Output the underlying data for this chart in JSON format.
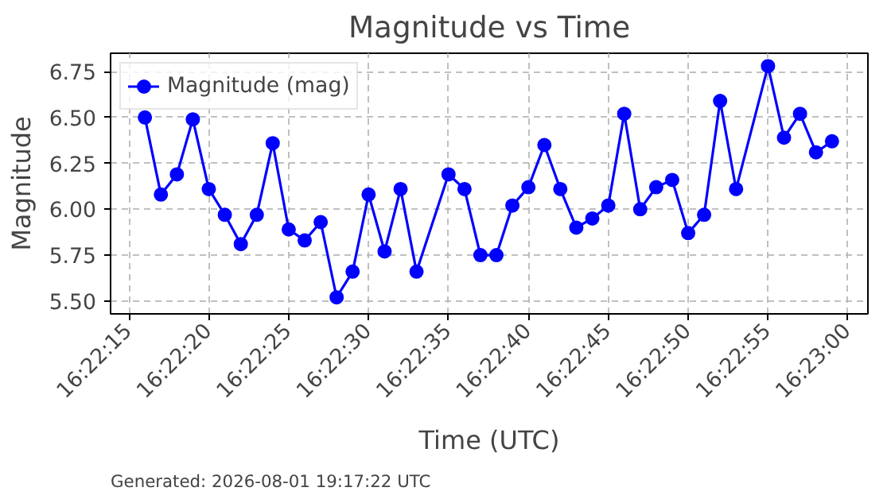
{
  "chart_data": {
    "type": "line",
    "title": "Magnitude vs Time",
    "xlabel": "Time (UTC)",
    "ylabel": "Magnitude",
    "annotations": [
      "Generated: 2026-08-01 19:17:22 UTC"
    ],
    "x": [
      16.371111,
      16.371389,
      16.371667,
      16.371944,
      16.372222,
      16.3725,
      16.372778,
      16.373056,
      16.373333,
      16.373611,
      16.373889,
      16.374167,
      16.374444,
      16.374722,
      16.375,
      16.375278,
      16.375556,
      16.375833,
      16.376389,
      16.376667,
      16.376944,
      16.377222,
      16.3775,
      16.377778,
      16.378056,
      16.378333,
      16.378611,
      16.378889,
      16.379167,
      16.379444,
      16.379722,
      16.38,
      16.380278,
      16.380556,
      16.380833,
      16.381111,
      16.381389,
      16.381944,
      16.382222,
      16.3825,
      16.382778,
      16.383056
    ],
    "series": [
      {
        "name": "Magnitude (mag)",
        "color": "#0000ff",
        "values": [
          6.5,
          6.08,
          6.19,
          6.49,
          6.11,
          5.97,
          5.81,
          5.97,
          6.36,
          5.89,
          5.83,
          5.93,
          5.52,
          5.66,
          6.08,
          5.77,
          6.11,
          5.66,
          6.19,
          6.11,
          5.75,
          5.75,
          6.02,
          6.12,
          6.35,
          6.11,
          5.9,
          5.95,
          6.02,
          6.52,
          6.0,
          6.12,
          6.16,
          5.87,
          5.97,
          6.59,
          6.11,
          6.78,
          6.39,
          6.52,
          6.31,
          6.37
        ]
      }
    ],
    "xlim": [
      16.370514,
      16.383681
    ],
    "xticks": [
      {
        "value": 16.370833,
        "label": "16:22:15"
      },
      {
        "value": 16.372222,
        "label": "16:22:20"
      },
      {
        "value": 16.373611,
        "label": "16:22:25"
      },
      {
        "value": 16.375,
        "label": "16:22:30"
      },
      {
        "value": 16.376389,
        "label": "16:22:35"
      },
      {
        "value": 16.377778,
        "label": "16:22:40"
      },
      {
        "value": 16.379167,
        "label": "16:22:45"
      },
      {
        "value": 16.380556,
        "label": "16:22:50"
      },
      {
        "value": 16.381944,
        "label": "16:22:55"
      },
      {
        "value": 16.383333,
        "label": "16:23:00"
      }
    ],
    "ylim": [
      5.43,
      6.85
    ],
    "yticks": [
      {
        "value": 5.5,
        "label": "5.50"
      },
      {
        "value": 5.75,
        "label": "5.75"
      },
      {
        "value": 6.0,
        "label": "6.00"
      },
      {
        "value": 6.25,
        "label": "6.25"
      },
      {
        "value": 6.5,
        "label": "6.50"
      },
      {
        "value": 6.75,
        "label": "6.75"
      }
    ],
    "grid": true,
    "legend": "top left",
    "marker": "circle",
    "line_style": "solid"
  }
}
